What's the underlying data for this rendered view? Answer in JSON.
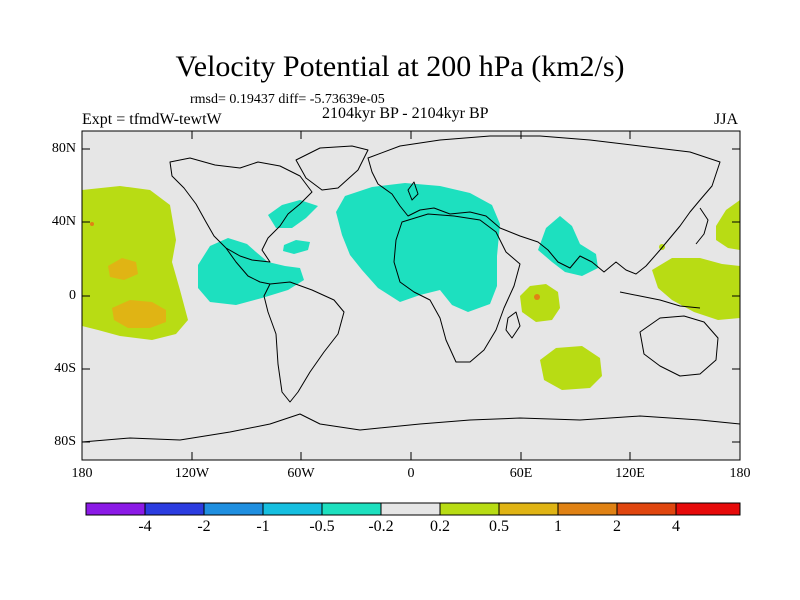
{
  "title": "Velocity Potential at 200 hPa (km2/s)",
  "stats": "rmsd= 0.19437 diff= -5.73639e-05",
  "experiment": "Expt = tfmdW-tewtW",
  "period": "2104kyr BP - 2104kyr BP",
  "season": "JJA",
  "y_axis": {
    "ticks": [
      "80N",
      "40N",
      "0",
      "40S",
      "80S"
    ]
  },
  "x_axis": {
    "ticks": [
      "180",
      "120W",
      "60W",
      "0",
      "60E",
      "120E",
      "180"
    ]
  },
  "colorbar": {
    "labels": [
      "-4",
      "-2",
      "-1",
      "-0.5",
      "-0.2",
      "0.2",
      "0.5",
      "1",
      "2",
      "4"
    ],
    "colors": [
      "#8b1ae6",
      "#2b3ce0",
      "#1f8fe0",
      "#16bfe0",
      "#1de0bf",
      "#e6e6e6",
      "#b8dc14",
      "#e0b414",
      "#e08214",
      "#e0460f",
      "#e60a0a"
    ]
  },
  "map_colors": {
    "neutral": "#e6e6e6",
    "negative_light": "#1de0bf",
    "positive_light": "#b8dc14",
    "positive_mid": "#e0b414",
    "positive_strong": "#e08214"
  },
  "chart_data": {
    "type": "map",
    "projection": "cylindrical equidistant",
    "field": "200 hPa velocity potential difference",
    "units": "km2/s",
    "lon_range": [
      -180,
      180
    ],
    "lat_range": [
      -90,
      90
    ],
    "contour_levels": [
      -4,
      -2,
      -1,
      -0.5,
      -0.2,
      0.2,
      0.5,
      1,
      2,
      4
    ],
    "regions": [
      {
        "name": "North Atlantic / Europe / North Africa",
        "class": "-0.5 to -0.2"
      },
      {
        "name": "Caribbean / tropical Atlantic",
        "class": "-0.5 to -0.2"
      },
      {
        "name": "Arabian Sea / India",
        "class": "-0.5 to -0.2"
      },
      {
        "name": "Central Pacific",
        "class": "0.2 to 0.5"
      },
      {
        "name": "Central Pacific cores",
        "class": "0.5 to 1"
      },
      {
        "name": "Western Pacific",
        "class": "0.2 to 0.5"
      },
      {
        "name": "Western Indian Ocean",
        "class": "0.2 to 0.5"
      },
      {
        "name": "Southern Indian Ocean",
        "class": "0.2 to 0.5"
      }
    ]
  }
}
